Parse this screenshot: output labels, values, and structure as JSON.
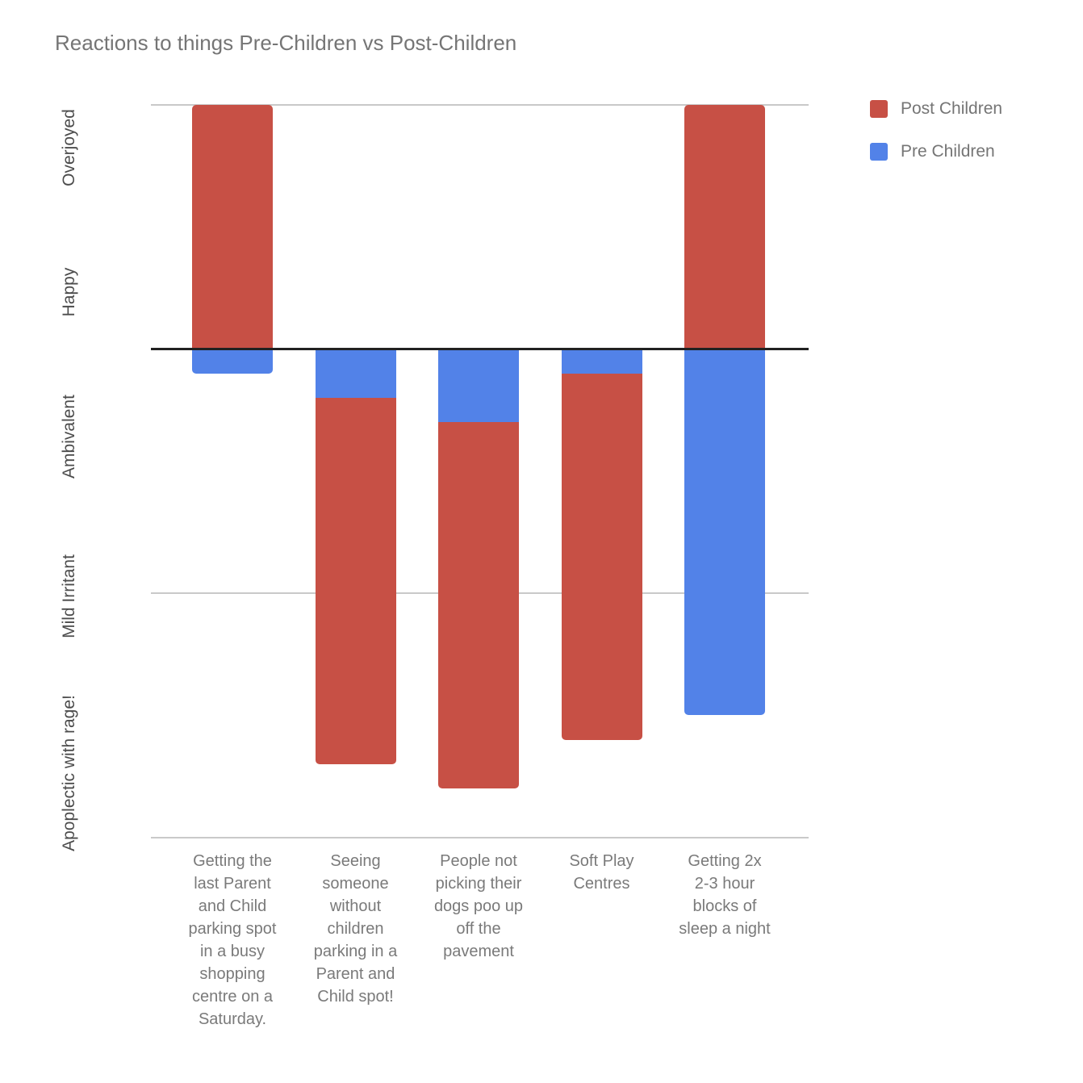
{
  "chart_data": {
    "type": "bar",
    "subtype": "stacked-column",
    "title": "Reactions to things Pre-Children vs Post-Children",
    "xlabel": "",
    "ylabel": "",
    "grid": true,
    "legend_position": "top-right",
    "categories": [
      "Getting the last Parent and Child parking spot in a busy shopping centre on a Saturday.",
      "Seeing someone without children parking in a Parent and Child spot!",
      "People not picking their dogs poo up off the pavement",
      "Soft Play Centres",
      "Getting 2x 2-3 hour blocks of sleep a night"
    ],
    "x_labels_display": [
      "Getting the\nlast Parent\nand Child\nparking spot\nin a busy\nshopping\ncentre on a\nSaturday.",
      "Seeing\nsomeone\nwithout\nchildren\nparking in a\nParent and\nChild spot!",
      "People not\npicking their\ndogs poo up\noff the\npavement",
      "Soft Play\nCentres",
      "Getting 2x\n2-3 hour\nblocks of\nsleep a night"
    ],
    "series": [
      {
        "name": "Post Children",
        "color": "#c75045",
        "values": [
          2,
          -3,
          -3,
          -3,
          2
        ]
      },
      {
        "name": "Pre Children",
        "color": "#5282e8",
        "values": [
          -0.2,
          -0.4,
          -0.6,
          -0.2,
          -3
        ]
      }
    ],
    "y_axis": {
      "tick_labels": [
        "Overjoyed",
        "Happy",
        "Ambivalent",
        "Mild Irritant",
        "Apoplectic with rage!"
      ],
      "range": [
        -4,
        2
      ],
      "gridline_values": [
        2,
        -2,
        -4
      ],
      "zero_line_value": 0
    }
  }
}
